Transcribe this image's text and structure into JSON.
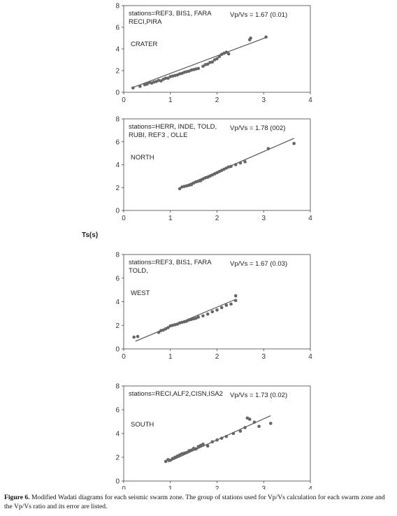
{
  "y_axis_label": "Ts(s)",
  "caption": {
    "label": "Figure 6.",
    "text": " Modified Wadati diagrams  for each seismic swarm zone. The group of stations used for Vp/Vs calculation for each swarm zone and the Vp/Vs ratio and its error are  listed."
  },
  "chart_data": [
    {
      "type": "scatter",
      "xlim": [
        0,
        4
      ],
      "ylim": [
        0,
        8
      ],
      "xticks": [
        0,
        1,
        2,
        3,
        4
      ],
      "yticks": [
        0,
        2,
        4,
        6,
        8
      ],
      "stations_lines": [
        "stations=REF3, BIS1, FARA",
        "RECI,PIRA"
      ],
      "ratio_label": "Vp/Vs = 1.67 (0.01)",
      "zone": "CRATER",
      "fit_line": [
        [
          0.2,
          0.45
        ],
        [
          3.05,
          5.05
        ]
      ],
      "points": [
        [
          0.2,
          0.4
        ],
        [
          0.35,
          0.55
        ],
        [
          0.45,
          0.7
        ],
        [
          0.5,
          0.75
        ],
        [
          0.55,
          0.9
        ],
        [
          0.6,
          0.85
        ],
        [
          0.65,
          0.95
        ],
        [
          0.7,
          1.0
        ],
        [
          0.75,
          1.1
        ],
        [
          0.8,
          1.05
        ],
        [
          0.85,
          1.2
        ],
        [
          0.9,
          1.3
        ],
        [
          0.95,
          1.3
        ],
        [
          1.0,
          1.45
        ],
        [
          1.05,
          1.5
        ],
        [
          1.1,
          1.55
        ],
        [
          1.15,
          1.6
        ],
        [
          1.2,
          1.7
        ],
        [
          1.25,
          1.75
        ],
        [
          1.3,
          1.85
        ],
        [
          1.35,
          1.9
        ],
        [
          1.4,
          1.95
        ],
        [
          1.45,
          2.05
        ],
        [
          1.5,
          2.1
        ],
        [
          1.55,
          2.15
        ],
        [
          1.6,
          2.2
        ],
        [
          1.7,
          2.4
        ],
        [
          1.75,
          2.55
        ],
        [
          1.8,
          2.6
        ],
        [
          1.85,
          2.75
        ],
        [
          1.9,
          2.8
        ],
        [
          1.95,
          3.0
        ],
        [
          2.0,
          3.1
        ],
        [
          2.05,
          3.3
        ],
        [
          2.1,
          3.5
        ],
        [
          2.15,
          3.6
        ],
        [
          2.2,
          3.7
        ],
        [
          2.25,
          3.55
        ],
        [
          2.7,
          4.85
        ],
        [
          2.72,
          5.0
        ],
        [
          3.05,
          5.1
        ]
      ]
    },
    {
      "type": "scatter",
      "xlim": [
        0,
        4
      ],
      "ylim": [
        0,
        8
      ],
      "xticks": [
        0,
        1,
        2,
        3,
        4
      ],
      "yticks": [
        0,
        2,
        4,
        6,
        8
      ],
      "stations_lines": [
        "stations=HERR, INDE, TOLD,",
        "RUBI, REF3 , OLLE"
      ],
      "ratio_label": "Vp/Vs = 1.78 (002)",
      "zone": "NORTH",
      "fit_line": [
        [
          1.2,
          1.95
        ],
        [
          3.65,
          6.3
        ]
      ],
      "points": [
        [
          1.2,
          1.9
        ],
        [
          1.25,
          2.05
        ],
        [
          1.3,
          2.1
        ],
        [
          1.35,
          2.15
        ],
        [
          1.4,
          2.2
        ],
        [
          1.45,
          2.25
        ],
        [
          1.5,
          2.4
        ],
        [
          1.55,
          2.5
        ],
        [
          1.6,
          2.55
        ],
        [
          1.65,
          2.6
        ],
        [
          1.7,
          2.75
        ],
        [
          1.75,
          2.85
        ],
        [
          1.8,
          2.9
        ],
        [
          1.85,
          3.0
        ],
        [
          1.9,
          3.1
        ],
        [
          1.95,
          3.2
        ],
        [
          2.0,
          3.3
        ],
        [
          2.05,
          3.4
        ],
        [
          2.1,
          3.5
        ],
        [
          2.15,
          3.6
        ],
        [
          2.2,
          3.7
        ],
        [
          2.25,
          3.8
        ],
        [
          2.3,
          3.85
        ],
        [
          2.4,
          4.0
        ],
        [
          2.5,
          4.15
        ],
        [
          2.6,
          4.25
        ],
        [
          3.1,
          5.4
        ],
        [
          3.65,
          5.85
        ]
      ]
    },
    {
      "type": "scatter",
      "xlim": [
        0,
        4
      ],
      "ylim": [
        0,
        8
      ],
      "xticks": [
        0,
        1,
        2,
        3,
        4
      ],
      "yticks": [
        0,
        2,
        4,
        6,
        8
      ],
      "stations_lines": [
        "stations=REF3, BIS1, FARA",
        "TOLD,"
      ],
      "ratio_label": "Vp/Vs = 1.67 (0.03)",
      "zone": "WEST",
      "fit_line": [
        [
          0.25,
          0.65
        ],
        [
          2.4,
          4.2
        ]
      ],
      "points": [
        [
          0.22,
          1.0
        ],
        [
          0.3,
          1.05
        ],
        [
          0.75,
          1.4
        ],
        [
          0.8,
          1.55
        ],
        [
          0.85,
          1.6
        ],
        [
          0.9,
          1.7
        ],
        [
          0.95,
          1.8
        ],
        [
          1.0,
          1.95
        ],
        [
          1.05,
          2.0
        ],
        [
          1.1,
          2.05
        ],
        [
          1.15,
          2.1
        ],
        [
          1.2,
          2.2
        ],
        [
          1.25,
          2.25
        ],
        [
          1.3,
          2.3
        ],
        [
          1.35,
          2.35
        ],
        [
          1.4,
          2.45
        ],
        [
          1.45,
          2.5
        ],
        [
          1.5,
          2.55
        ],
        [
          1.55,
          2.6
        ],
        [
          1.6,
          2.7
        ],
        [
          1.7,
          2.8
        ],
        [
          1.8,
          2.95
        ],
        [
          1.9,
          3.15
        ],
        [
          2.0,
          3.3
        ],
        [
          2.1,
          3.5
        ],
        [
          2.2,
          3.7
        ],
        [
          2.3,
          3.8
        ],
        [
          2.4,
          4.1
        ],
        [
          2.4,
          4.5
        ]
      ]
    },
    {
      "type": "scatter",
      "xlim": [
        0,
        4
      ],
      "ylim": [
        0,
        8
      ],
      "xticks": [
        0,
        1,
        2,
        3,
        4
      ],
      "yticks": [
        0,
        2,
        4,
        6,
        8
      ],
      "stations_lines": [
        "stations=RECI,ALF2,CISN,ISA2"
      ],
      "ratio_label": "Vp/Vs = 1.73 (0.02)",
      "zone": "SOUTH",
      "fit_line": [
        [
          0.95,
          1.6
        ],
        [
          3.15,
          5.5
        ]
      ],
      "points": [
        [
          0.9,
          1.65
        ],
        [
          0.95,
          1.8
        ],
        [
          1.0,
          1.75
        ],
        [
          1.05,
          1.9
        ],
        [
          1.1,
          2.0
        ],
        [
          1.15,
          2.1
        ],
        [
          1.2,
          2.2
        ],
        [
          1.25,
          2.3
        ],
        [
          1.3,
          2.35
        ],
        [
          1.35,
          2.4
        ],
        [
          1.4,
          2.55
        ],
        [
          1.45,
          2.6
        ],
        [
          1.5,
          2.75
        ],
        [
          1.55,
          2.7
        ],
        [
          1.6,
          2.9
        ],
        [
          1.65,
          3.0
        ],
        [
          1.7,
          3.1
        ],
        [
          1.8,
          2.95
        ],
        [
          1.9,
          3.3
        ],
        [
          2.0,
          3.45
        ],
        [
          2.1,
          3.6
        ],
        [
          2.2,
          3.75
        ],
        [
          2.35,
          4.0
        ],
        [
          2.5,
          4.2
        ],
        [
          2.6,
          4.5
        ],
        [
          2.65,
          5.3
        ],
        [
          2.7,
          5.2
        ],
        [
          2.8,
          4.95
        ],
        [
          2.9,
          4.6
        ],
        [
          3.15,
          4.85
        ]
      ]
    }
  ]
}
